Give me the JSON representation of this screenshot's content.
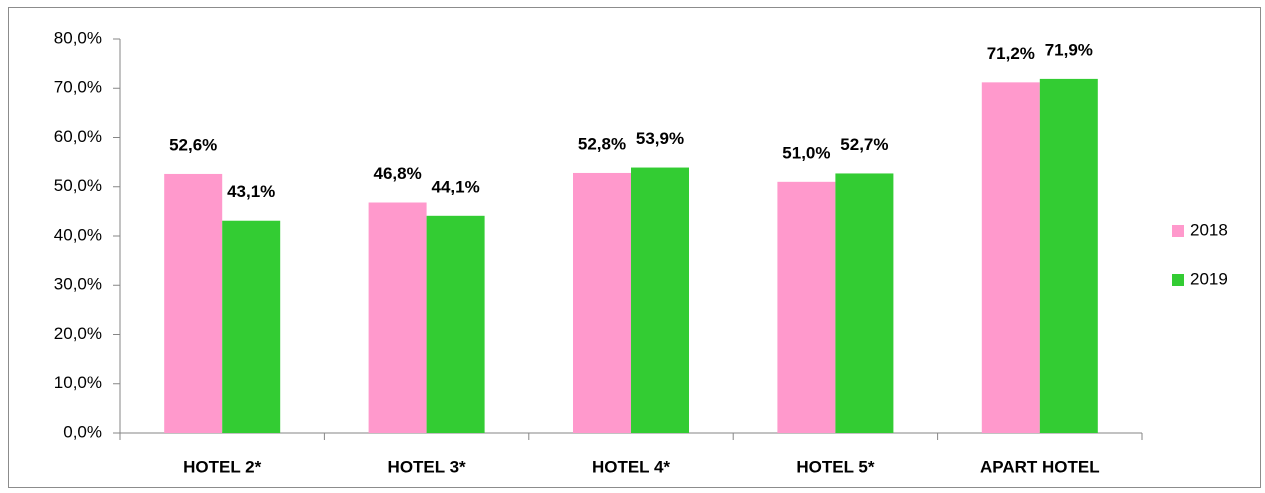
{
  "chart_data": {
    "type": "bar",
    "categories": [
      "HOTEL 2*",
      "HOTEL 3*",
      "HOTEL 4*",
      "HOTEL 5*",
      "APART HOTEL"
    ],
    "series": [
      {
        "name": "2018",
        "color": "#ff99cc",
        "values": [
          52.6,
          46.8,
          52.8,
          51.0,
          71.2
        ],
        "value_labels": [
          "52,6%",
          "46,8%",
          "52,8%",
          "51,0%",
          "71,2%"
        ]
      },
      {
        "name": "2019",
        "color": "#33cc33",
        "values": [
          43.1,
          44.1,
          53.9,
          52.7,
          71.9
        ],
        "value_labels": [
          "43,1%",
          "44,1%",
          "53,9%",
          "52,7%",
          "71,9%"
        ]
      }
    ],
    "ylim": [
      0,
      80
    ],
    "yticks": [
      {
        "value": 0,
        "label": "0,0%"
      },
      {
        "value": 10,
        "label": "10,0%"
      },
      {
        "value": 20,
        "label": "20,0%"
      },
      {
        "value": 30,
        "label": "30,0%"
      },
      {
        "value": 40,
        "label": "40,0%"
      },
      {
        "value": 50,
        "label": "50,0%"
      },
      {
        "value": 60,
        "label": "60,0%"
      },
      {
        "value": 70,
        "label": "70,0%"
      },
      {
        "value": 80,
        "label": "80,0%"
      }
    ],
    "grid": false,
    "legend": "right"
  }
}
